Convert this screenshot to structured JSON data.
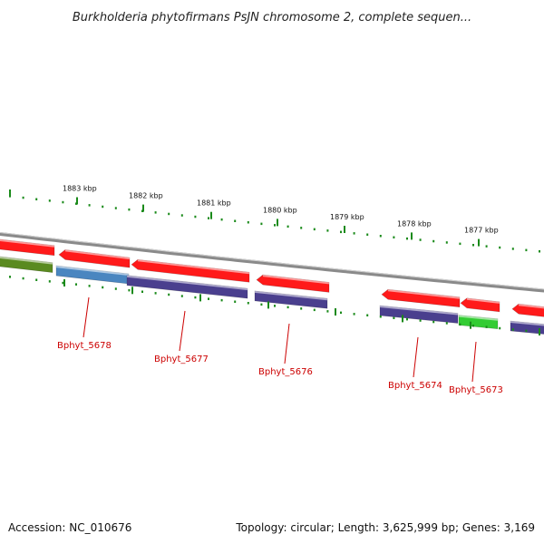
{
  "title": "Burkholderia phytofirmans PsJN chromosome 2, complete sequen...",
  "footer": {
    "accession": "Accession: NC_010676",
    "summary": "Topology: circular; Length: 3,625,999 bp; Genes: 3,169"
  },
  "colors": {
    "backbone": "#8a8a8a",
    "tick": "#1a8a1a",
    "label": "#cc0000",
    "forward_gene": "#ff1a1a",
    "reverse_purple": "#4a3f8e",
    "reverse_blue": "#4a86c0",
    "reverse_green": "#33cc33",
    "reverse_olive": "#5a8a20"
  },
  "scale": {
    "unit": "kbp",
    "labels": [
      "1883 kbp",
      "1882 kbp",
      "1881 kbp",
      "1880 kbp",
      "1879 kbp",
      "1878 kbp",
      "1877 kbp"
    ]
  },
  "genes": [
    {
      "label": "Bphyt_5678"
    },
    {
      "label": "Bphyt_5677"
    },
    {
      "label": "Bphyt_5676"
    },
    {
      "label": "Bphyt_5674"
    },
    {
      "label": "Bphyt_5673"
    }
  ]
}
